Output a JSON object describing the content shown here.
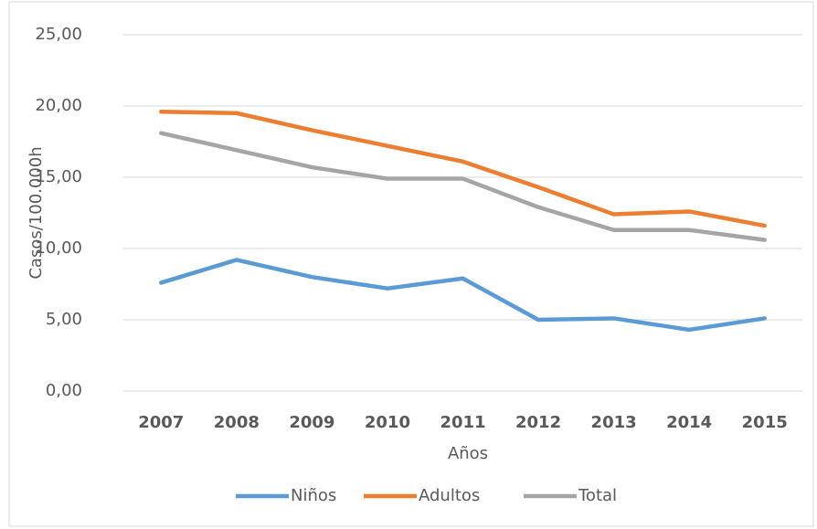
{
  "chart_data": {
    "type": "line",
    "categories": [
      "2007",
      "2008",
      "2009",
      "2010",
      "2011",
      "2012",
      "2013",
      "2014",
      "2015"
    ],
    "series": [
      {
        "name": "Niños",
        "color": "#5b9bd5",
        "values": [
          7.6,
          9.2,
          8.0,
          7.2,
          7.9,
          5.0,
          5.1,
          4.3,
          5.1
        ]
      },
      {
        "name": "Adultos",
        "color": "#ed7d31",
        "values": [
          19.6,
          19.5,
          18.3,
          17.2,
          16.1,
          14.3,
          12.4,
          12.6,
          11.6
        ]
      },
      {
        "name": "Total",
        "color": "#a5a5a5",
        "values": [
          18.1,
          16.9,
          15.7,
          14.9,
          14.9,
          12.9,
          11.3,
          11.3,
          10.6
        ]
      }
    ],
    "ylim": [
      0,
      25
    ],
    "yticks": [
      {
        "value": 0,
        "label": "0,00"
      },
      {
        "value": 5,
        "label": "5,00"
      },
      {
        "value": 10,
        "label": "10,00"
      },
      {
        "value": 15,
        "label": "15,00"
      },
      {
        "value": 20,
        "label": "20,00"
      },
      {
        "value": 25,
        "label": "25,00"
      }
    ],
    "grid": true,
    "xlabel": "Años",
    "ylabel": "Casos/100.000h",
    "legend": "bottom"
  }
}
